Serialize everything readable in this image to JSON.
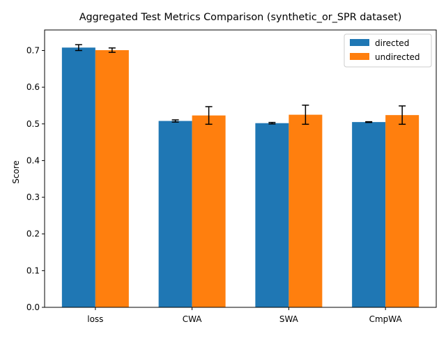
{
  "chart_data": {
    "type": "bar",
    "title": "Aggregated Test Metrics Comparison (synthetic_or_SPR dataset)",
    "xlabel": "",
    "ylabel": "Score",
    "ylim": [
      0,
      0.756
    ],
    "yticks": [
      0.0,
      0.1,
      0.2,
      0.3,
      0.4,
      0.5,
      0.6,
      0.7
    ],
    "ytick_labels": [
      "0.0",
      "0.1",
      "0.2",
      "0.3",
      "0.4",
      "0.5",
      "0.6",
      "0.7"
    ],
    "categories": [
      "loss",
      "CWA",
      "SWA",
      "CmpWA"
    ],
    "series": [
      {
        "name": "directed",
        "color": "#1f77b4",
        "values": [
          0.708,
          0.508,
          0.502,
          0.505
        ],
        "errors": [
          0.008,
          0.003,
          0.002,
          0.001
        ]
      },
      {
        "name": "undirected",
        "color": "#ff7f0e",
        "values": [
          0.701,
          0.523,
          0.525,
          0.524
        ],
        "errors": [
          0.006,
          0.024,
          0.026,
          0.025
        ]
      }
    ],
    "grid": false,
    "legend_position": "top-right"
  }
}
